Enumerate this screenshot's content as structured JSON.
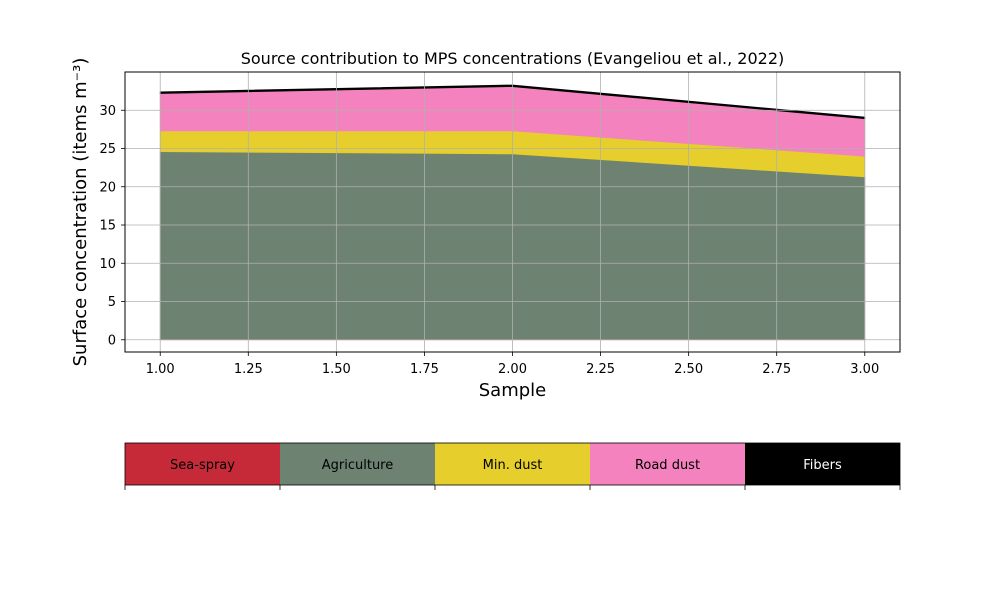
{
  "chart_data": {
    "type": "area",
    "title": "Source contribution to MPS concentrations (Evangeliou et al., 2022)",
    "xlabel": "Sample",
    "ylabel": "Surface concentration (items m⁻³)",
    "x": [
      1.0,
      2.0,
      3.0
    ],
    "xlim": [
      0.9,
      3.1
    ],
    "ylim": [
      -1.6,
      35.0
    ],
    "xticks": [
      "1.00",
      "1.25",
      "1.50",
      "1.75",
      "2.00",
      "2.25",
      "2.50",
      "2.75",
      "3.00"
    ],
    "yticks": [
      "0",
      "5",
      "10",
      "15",
      "20",
      "25",
      "30"
    ],
    "grid": true,
    "stacked": true,
    "series": [
      {
        "name": "Sea-spray",
        "color": "#c62a38",
        "values": [
          0.1,
          0.1,
          0.1
        ]
      },
      {
        "name": "Agriculture",
        "color": "#6e8272",
        "values": [
          24.5,
          24.2,
          21.2
        ]
      },
      {
        "name": "Min. dust",
        "color": "#e6cf2c",
        "values": [
          2.7,
          3.0,
          2.7
        ]
      },
      {
        "name": "Road dust",
        "color": "#f482be",
        "values": [
          4.9,
          5.8,
          4.9
        ]
      },
      {
        "name": "Fibers",
        "color": "#000000",
        "values": [
          0.2,
          0.2,
          0.2
        ]
      }
    ]
  },
  "legend": {
    "placement": "bottom",
    "items": [
      {
        "name": "Sea-spray",
        "color": "#c62a38",
        "text_color": "#000000"
      },
      {
        "name": "Agriculture",
        "color": "#6e8272",
        "text_color": "#000000"
      },
      {
        "name": "Min. dust",
        "color": "#e6cf2c",
        "text_color": "#000000"
      },
      {
        "name": "Road dust",
        "color": "#f482be",
        "text_color": "#000000"
      },
      {
        "name": "Fibers",
        "color": "#000000",
        "text_color": "#ffffff"
      }
    ]
  }
}
